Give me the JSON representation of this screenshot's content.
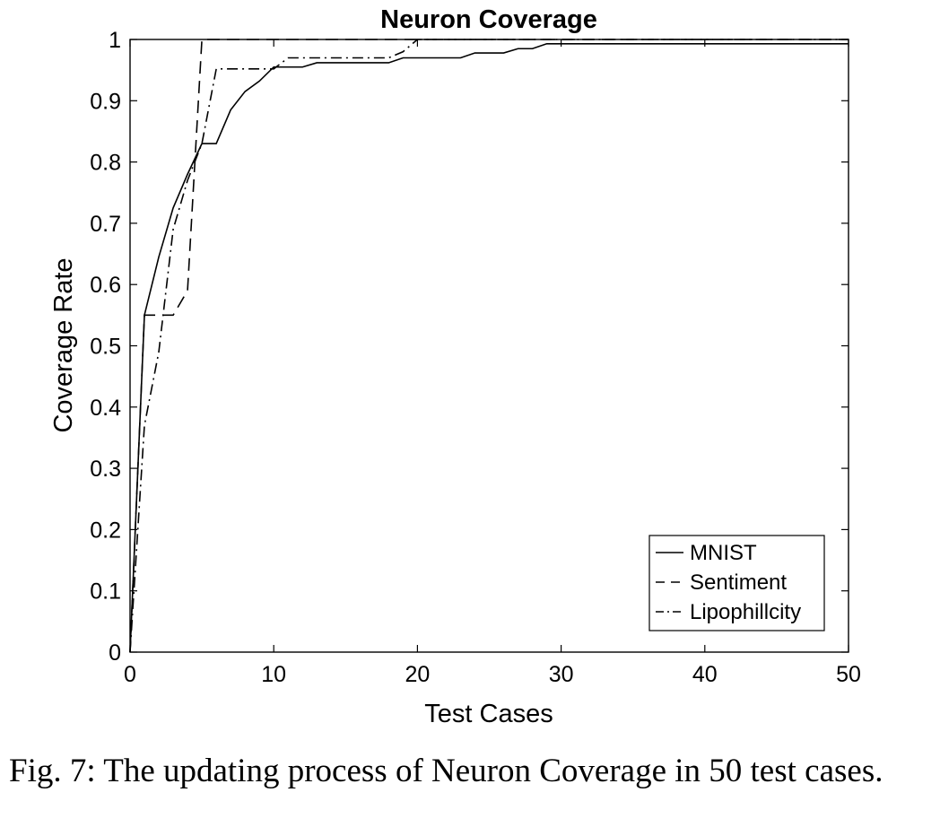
{
  "chart_data": {
    "type": "line",
    "title": "Neuron Coverage",
    "xlabel": "Test Cases",
    "ylabel": "Coverage Rate",
    "xlim": [
      0,
      50
    ],
    "ylim": [
      0,
      1
    ],
    "xticks": [
      0,
      10,
      20,
      30,
      40,
      50
    ],
    "xtick_labels": [
      "0",
      "10",
      "20",
      "30",
      "40",
      "50"
    ],
    "yticks": [
      0,
      0.1,
      0.2,
      0.3,
      0.4,
      0.5,
      0.6,
      0.7,
      0.8,
      0.9,
      1
    ],
    "ytick_labels": [
      "0",
      "0.1",
      "0.2",
      "0.3",
      "0.4",
      "0.5",
      "0.6",
      "0.7",
      "0.8",
      "0.9",
      "1"
    ],
    "grid": false,
    "legend_position": "bottom-right",
    "series": [
      {
        "name": "MNIST",
        "style": "solid",
        "x": [
          0,
          1,
          2,
          3,
          4,
          5,
          6,
          7,
          8,
          9,
          10,
          11,
          12,
          13,
          14,
          15,
          16,
          17,
          18,
          19,
          20,
          21,
          22,
          23,
          24,
          25,
          26,
          27,
          28,
          29,
          30,
          31,
          32,
          33,
          34,
          35,
          36,
          37,
          38,
          39,
          40,
          41,
          42,
          43,
          44,
          45,
          46,
          47,
          48,
          49,
          50
        ],
        "y": [
          0,
          0.55,
          0.645,
          0.725,
          0.78,
          0.83,
          0.83,
          0.885,
          0.915,
          0.932,
          0.955,
          0.955,
          0.955,
          0.962,
          0.962,
          0.962,
          0.962,
          0.962,
          0.962,
          0.97,
          0.97,
          0.97,
          0.97,
          0.97,
          0.978,
          0.978,
          0.978,
          0.985,
          0.985,
          0.993,
          0.993,
          0.993,
          0.993,
          0.993,
          0.993,
          0.993,
          0.993,
          0.993,
          0.993,
          0.993,
          0.993,
          0.993,
          0.993,
          0.993,
          0.993,
          0.993,
          0.993,
          0.993,
          0.993,
          0.993,
          0.993
        ]
      },
      {
        "name": "Sentiment",
        "style": "dashed",
        "x": [
          0,
          1,
          2,
          3,
          4,
          5,
          6,
          7,
          8,
          9,
          10,
          11,
          12,
          13,
          14,
          15,
          16,
          17,
          18,
          19,
          20,
          21,
          22,
          23,
          24,
          25,
          26,
          27,
          28,
          29,
          30,
          31,
          32,
          33,
          34,
          35,
          36,
          37,
          38,
          39,
          40,
          41,
          42,
          43,
          44,
          45,
          46,
          47,
          48,
          49,
          50
        ],
        "y": [
          0,
          0.55,
          0.55,
          0.55,
          0.59,
          1,
          1,
          1,
          1,
          1,
          1,
          1,
          1,
          1,
          1,
          1,
          1,
          1,
          1,
          1,
          1,
          1,
          1,
          1,
          1,
          1,
          1,
          1,
          1,
          1,
          1,
          1,
          1,
          1,
          1,
          1,
          1,
          1,
          1,
          1,
          1,
          1,
          1,
          1,
          1,
          1,
          1,
          1,
          1,
          1,
          1
        ]
      },
      {
        "name": "Lipophillcity",
        "style": "dashdot",
        "x": [
          0,
          1,
          2,
          3,
          4,
          5,
          6,
          7,
          8,
          9,
          10,
          11,
          12,
          13,
          14,
          15,
          16,
          17,
          18,
          19,
          20,
          21,
          22,
          23,
          24,
          25,
          26,
          27,
          28,
          29,
          30,
          31,
          32,
          33,
          34,
          35,
          36,
          37,
          38,
          39,
          40,
          41,
          42,
          43,
          44,
          45,
          46,
          47,
          48,
          49,
          50
        ],
        "y": [
          0,
          0.37,
          0.49,
          0.69,
          0.77,
          0.83,
          0.952,
          0.952,
          0.952,
          0.952,
          0.952,
          0.97,
          0.97,
          0.97,
          0.97,
          0.97,
          0.97,
          0.97,
          0.97,
          0.98,
          1,
          1,
          1,
          1,
          1,
          1,
          1,
          1,
          1,
          1,
          1,
          1,
          1,
          1,
          1,
          1,
          1,
          1,
          1,
          1,
          1,
          1,
          1,
          1,
          1,
          1,
          1,
          1,
          1,
          1,
          1
        ]
      }
    ]
  },
  "caption": "Fig. 7: The updating process of Neuron Coverage in 50 test cases."
}
